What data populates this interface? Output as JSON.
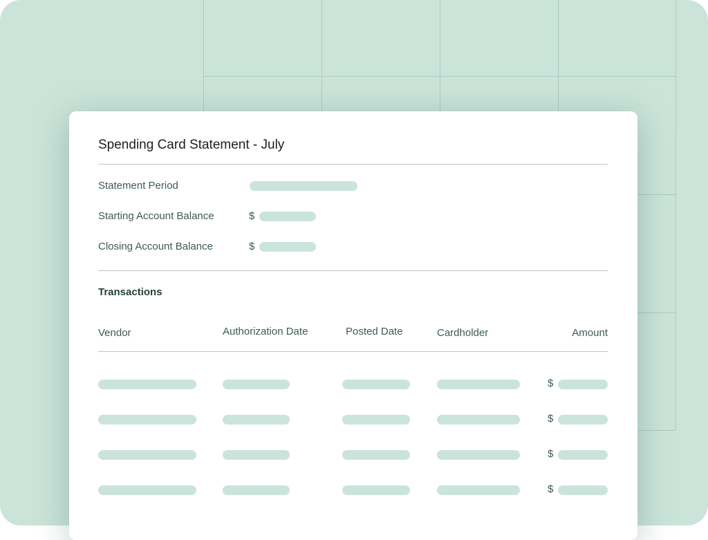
{
  "statement": {
    "title": "Spending Card Statement - July",
    "fields": [
      {
        "label": "Statement Period",
        "currency": ""
      },
      {
        "label": "Starting Account Balance",
        "currency": "$"
      },
      {
        "label": "Closing Account Balance",
        "currency": "$"
      }
    ],
    "transactions": {
      "heading": "Transactions",
      "columns": [
        "Vendor",
        "Authorization Date",
        "Posted Date",
        "Cardholder",
        "Amount"
      ],
      "row_currency": "$",
      "row_count": 4
    }
  },
  "colors": {
    "background": "#cbe4da",
    "placeholder": "#cbe4da",
    "card": "#ffffff"
  }
}
